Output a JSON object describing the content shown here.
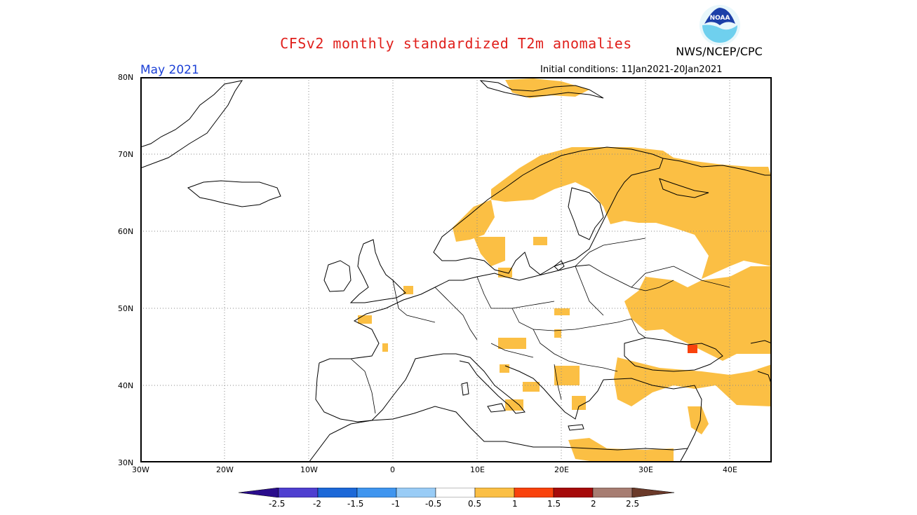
{
  "header": {
    "title": "CFSv2 monthly standardized T2m anomalies",
    "agency": "NWS/NCEP/CPC",
    "logo_text": "NOAA",
    "period": "May 2021",
    "initial_conditions": "Initial conditions: 11Jan2021-20Jan2021"
  },
  "axes": {
    "lat_labels": [
      "80N",
      "70N",
      "60N",
      "50N",
      "40N",
      "30N"
    ],
    "lon_labels": [
      "30W",
      "20W",
      "10W",
      "0",
      "10E",
      "20E",
      "30E",
      "40E"
    ]
  },
  "legend": {
    "labels": [
      "-2.5",
      "-2",
      "-1.5",
      "-1",
      "-0.5",
      "0.5",
      "1",
      "1.5",
      "2",
      "2.5"
    ],
    "colors": [
      "#2a0d8c",
      "#4f3fd0",
      "#1c68d8",
      "#3f95ef",
      "#99ccf6",
      "#ffffff",
      "#fbbf44",
      "#f9420c",
      "#a60a0a",
      "#a77d72",
      "#6b3a2a"
    ]
  },
  "colors": {
    "anomaly_warm": "#fbbf44",
    "anomaly_hot": "#f9420c",
    "title": "#e0201c",
    "period": "#1a3fd6"
  }
}
